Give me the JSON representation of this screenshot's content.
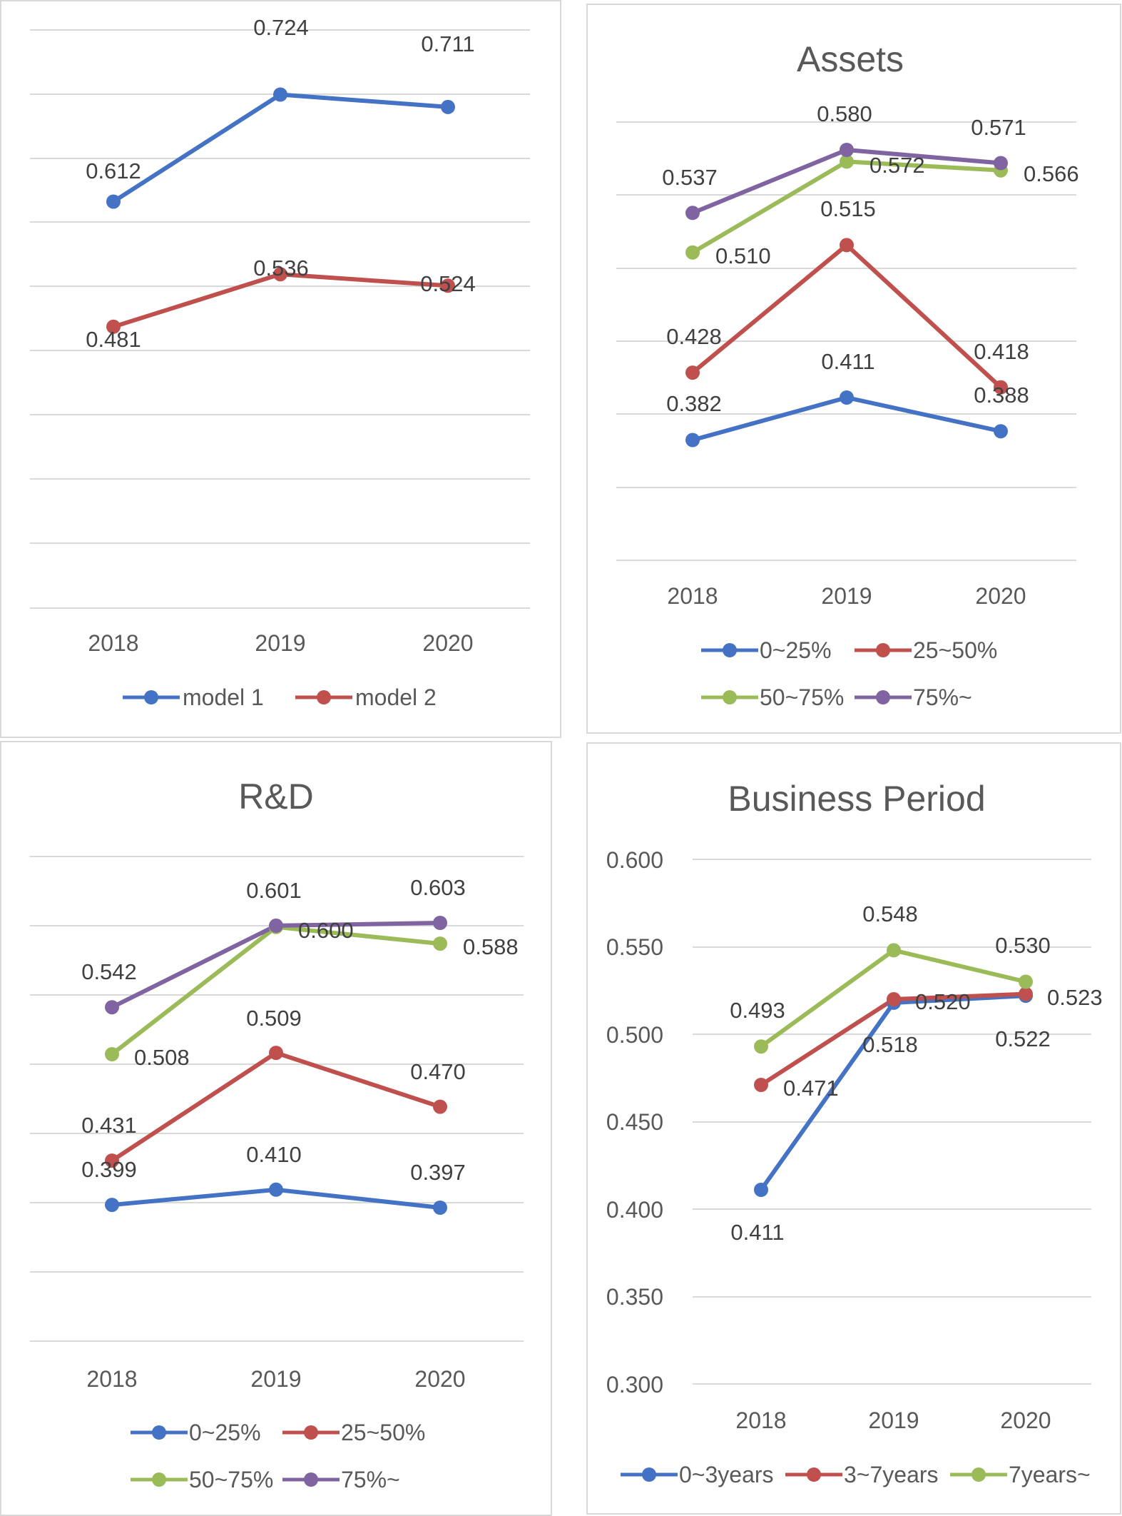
{
  "chart_data": [
    {
      "type": "line",
      "title": "",
      "categories": [
        "2018",
        "2019",
        "2020"
      ],
      "ylim": [
        0,
        0.8
      ],
      "grid": true,
      "legend": "bottom",
      "series": [
        {
          "name": "model 1",
          "color": "#4472c4",
          "values": [
            0.612,
            0.724,
            0.711
          ],
          "labels": [
            "0.612",
            "0.724",
            "0.711"
          ]
        },
        {
          "name": "model 2",
          "color": "#c0504d",
          "values": [
            0.481,
            0.536,
            0.524
          ],
          "labels": [
            "0.481",
            "0.536",
            "0.524"
          ]
        }
      ]
    },
    {
      "type": "line",
      "title": "Assets",
      "categories": [
        "2018",
        "2019",
        "2020"
      ],
      "ylim": [
        0.3,
        0.6
      ],
      "grid": true,
      "legend": "bottom",
      "series": [
        {
          "name": "0~25%",
          "color": "#4472c4",
          "values": [
            0.382,
            0.411,
            0.388
          ],
          "labels": [
            "0.382",
            "0.411",
            "0.388"
          ]
        },
        {
          "name": "25~50%",
          "color": "#c0504d",
          "values": [
            0.428,
            0.515,
            0.418
          ],
          "labels": [
            "0.428",
            "0.515",
            "0.418"
          ]
        },
        {
          "name": "50~75%",
          "color": "#9bbb59",
          "values": [
            0.51,
            0.572,
            0.566
          ],
          "labels": [
            "0.510",
            "0.572",
            "0.566"
          ]
        },
        {
          "name": "75%~",
          "color": "#8064a2",
          "values": [
            0.537,
            0.58,
            0.571
          ],
          "labels": [
            "0.537",
            "0.580",
            "0.571"
          ]
        }
      ]
    },
    {
      "type": "line",
      "title": "R&D",
      "categories": [
        "2018",
        "2019",
        "2020"
      ],
      "ylim": [
        0.3,
        0.65
      ],
      "grid": true,
      "legend": "bottom",
      "series": [
        {
          "name": "0~25%",
          "color": "#4472c4",
          "values": [
            0.399,
            0.41,
            0.397
          ],
          "labels": [
            "0.399",
            "0.410",
            "0.397"
          ]
        },
        {
          "name": "25~50%",
          "color": "#c0504d",
          "values": [
            0.431,
            0.509,
            0.47
          ],
          "labels": [
            "0.431",
            "0.509",
            "0.470"
          ]
        },
        {
          "name": "50~75%",
          "color": "#9bbb59",
          "values": [
            0.508,
            0.6,
            0.588
          ],
          "labels": [
            "0.508",
            "0.600",
            "0.588"
          ]
        },
        {
          "name": "75%~",
          "color": "#8064a2",
          "values": [
            0.542,
            0.601,
            0.603
          ],
          "labels": [
            "0.542",
            "0.601",
            "0.603"
          ]
        }
      ]
    },
    {
      "type": "line",
      "title": "Business Period",
      "categories": [
        "2018",
        "2019",
        "2020"
      ],
      "ylim": [
        0.3,
        0.6
      ],
      "yticks": [
        "0.600",
        "0.550",
        "0.500",
        "0.450",
        "0.400",
        "0.350",
        "0.300"
      ],
      "grid": true,
      "legend": "bottom",
      "series": [
        {
          "name": "0~3years",
          "color": "#4472c4",
          "values": [
            0.411,
            0.518,
            0.522
          ],
          "labels": [
            "0.411",
            "0.518",
            "0.522"
          ]
        },
        {
          "name": "3~7years",
          "color": "#c0504d",
          "values": [
            0.471,
            0.52,
            0.523
          ],
          "labels": [
            "0.471",
            "0.520",
            "0.523"
          ]
        },
        {
          "name": "7years~",
          "color": "#9bbb59",
          "values": [
            0.493,
            0.548,
            0.53
          ],
          "labels": [
            "0.493",
            "0.548",
            "0.530"
          ]
        }
      ]
    }
  ]
}
